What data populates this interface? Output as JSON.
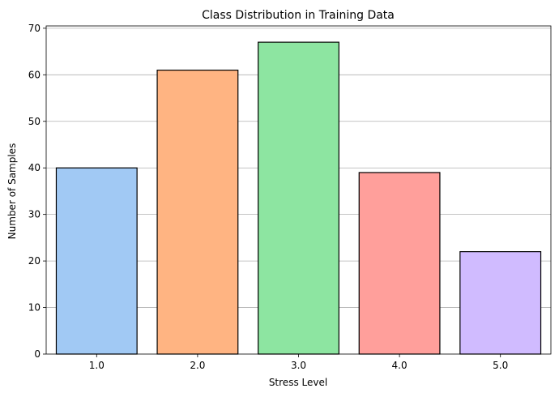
{
  "chart_data": {
    "type": "bar",
    "title": "Class Distribution in Training Data",
    "xlabel": "Stress Level",
    "ylabel": "Number of Samples",
    "categories": [
      "1.0",
      "2.0",
      "3.0",
      "4.0",
      "5.0"
    ],
    "values": [
      40,
      61,
      67,
      39,
      22
    ],
    "ylim": [
      0,
      70.5
    ],
    "yticks": [
      0,
      10,
      20,
      30,
      40,
      50,
      60,
      70
    ],
    "grid": "y",
    "colors": [
      "#a1c9f4",
      "#ffb482",
      "#8de5a1",
      "#ff9f9b",
      "#d0bbff"
    ],
    "edge_color": "#000000"
  }
}
